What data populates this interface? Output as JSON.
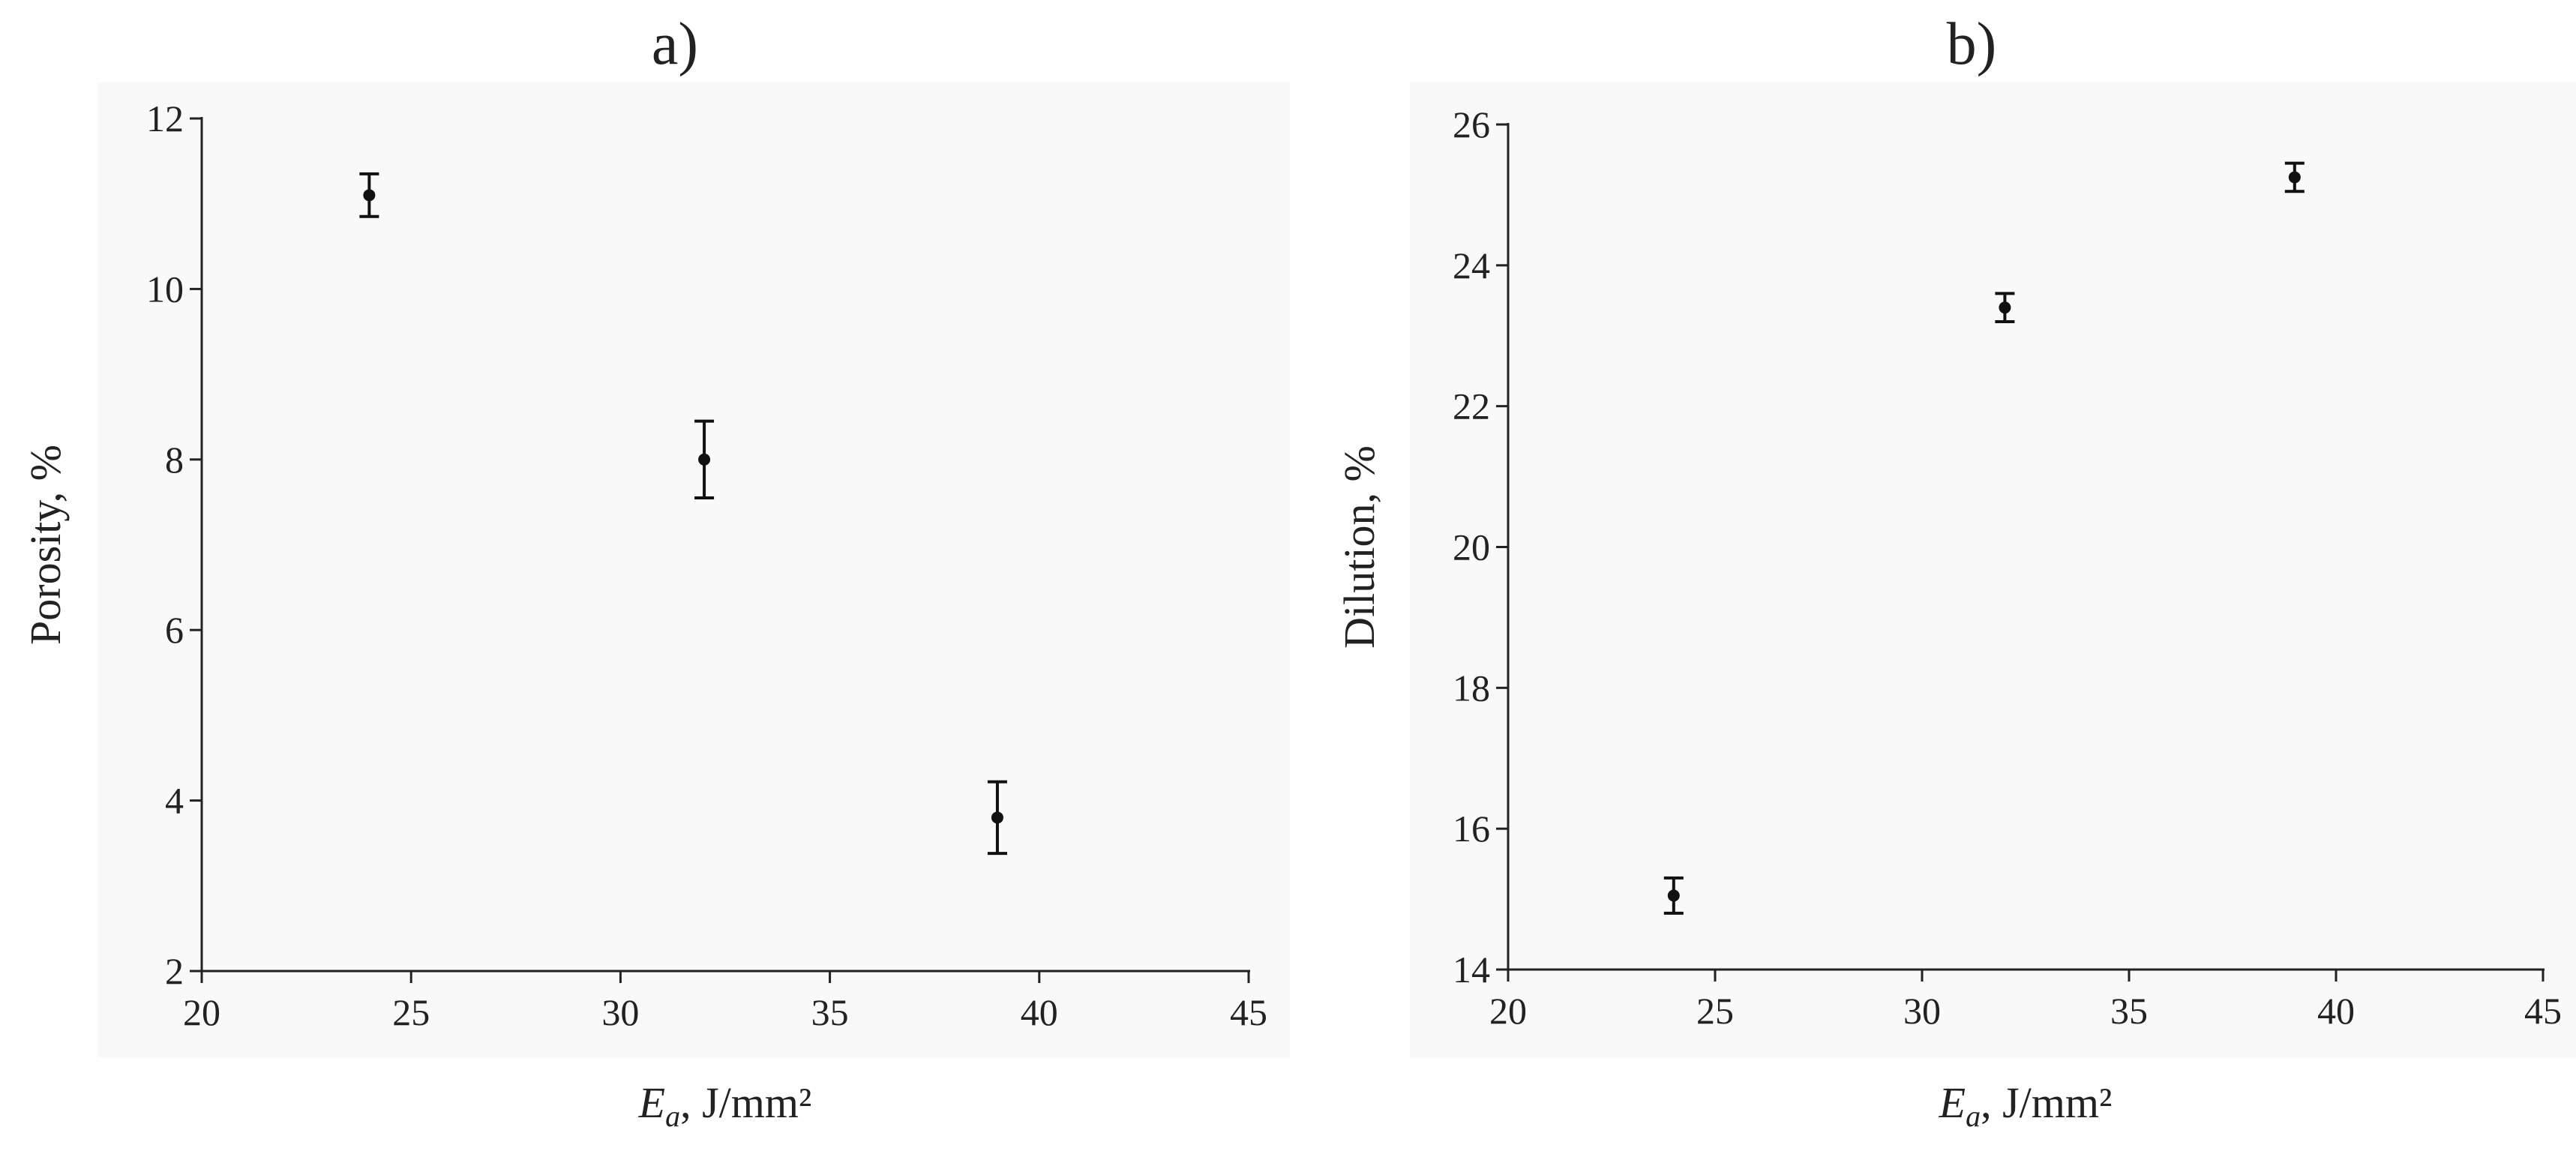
{
  "chart_data": [
    {
      "type": "scatter",
      "title": "a)",
      "ylabel": "Porosity, %",
      "xlabel": [
        "E",
        "a",
        ", J/mm²"
      ],
      "x": [
        24,
        32,
        39
      ],
      "values": [
        11.1,
        8.0,
        3.8
      ],
      "errors": [
        0.25,
        0.45,
        0.42
      ],
      "color": "#111111",
      "xlim": [
        20,
        45
      ],
      "xticks": [
        20,
        25,
        30,
        35,
        40,
        45
      ],
      "ylim": [
        2,
        12
      ],
      "yticks": [
        2,
        4,
        6,
        8,
        10,
        12
      ]
    },
    {
      "type": "scatter",
      "title": "b)",
      "ylabel": "Dilution, %",
      "xlabel": [
        "E",
        "a",
        ", J/mm²"
      ],
      "x": [
        24,
        32,
        39
      ],
      "values": [
        15.05,
        23.4,
        25.25
      ],
      "errors": [
        0.25,
        0.2,
        0.2
      ],
      "color": "#111111",
      "xlim": [
        20,
        45
      ],
      "xticks": [
        20,
        25,
        30,
        35,
        40,
        45
      ],
      "ylim": [
        14,
        26
      ],
      "yticks": [
        14,
        16,
        18,
        20,
        22,
        24,
        26
      ]
    }
  ]
}
